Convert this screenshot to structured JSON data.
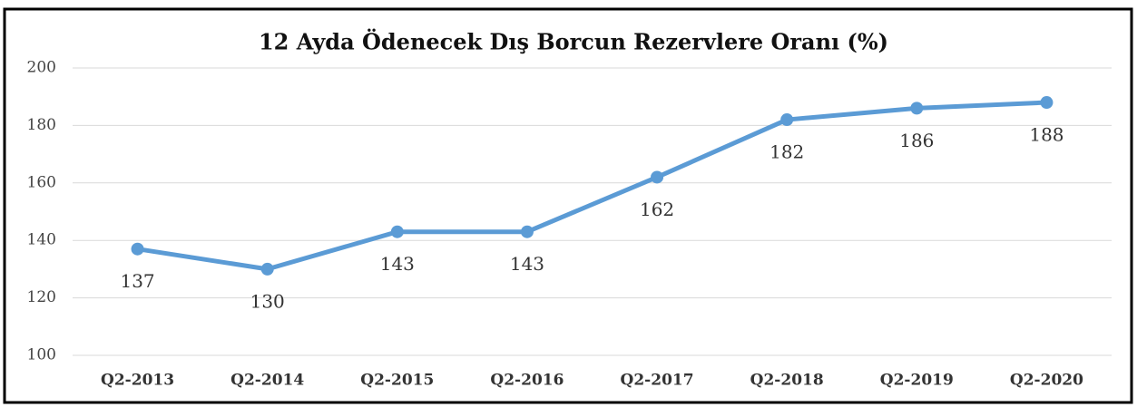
{
  "chart_data": {
    "type": "line",
    "title": "12 Ayda Ödenecek Dış Borcun Rezervlere Oranı (%)",
    "categories": [
      "Q2-2013",
      "Q2-2014",
      "Q2-2015",
      "Q2-2016",
      "Q2-2017",
      "Q2-2018",
      "Q2-2019",
      "Q2-2020"
    ],
    "series": [
      {
        "name": "Oran",
        "color": "#5b9bd5",
        "values": [
          137,
          130,
          143,
          143,
          162,
          182,
          186,
          188
        ]
      }
    ],
    "ylim": [
      100,
      200
    ],
    "yticks": [
      100,
      120,
      140,
      160,
      180,
      200
    ],
    "grid": true
  }
}
